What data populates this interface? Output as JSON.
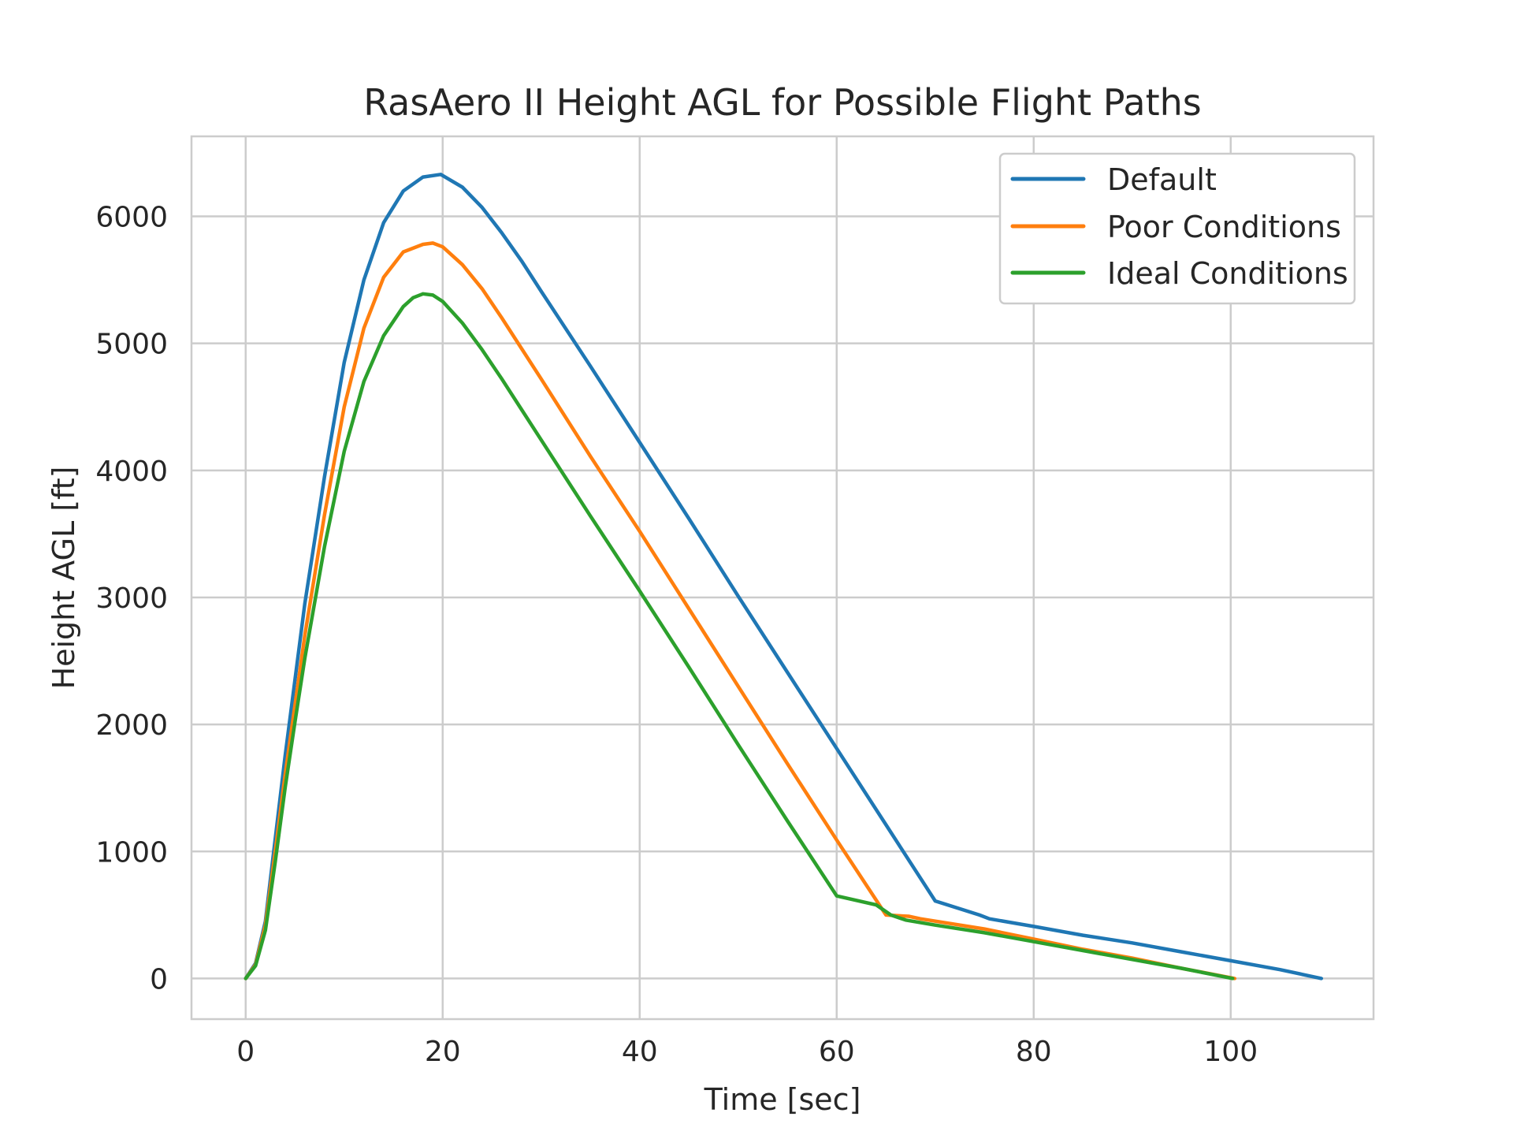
{
  "chart_data": {
    "type": "line",
    "title": "RasAero II Height AGL for Possible Flight Paths",
    "xlabel": "Time [sec]",
    "ylabel": "Height AGL [ft]",
    "xlim": [
      -5.5,
      114.5
    ],
    "ylim": [
      -320,
      6630
    ],
    "xticks": [
      0,
      20,
      40,
      60,
      80,
      100
    ],
    "yticks": [
      0,
      1000,
      2000,
      3000,
      4000,
      5000,
      6000
    ],
    "grid": true,
    "legend_position": "top-right",
    "series": [
      {
        "name": "Default",
        "color": "#1f77b4",
        "x": [
          0,
          1,
          2,
          3,
          4,
          5,
          6,
          8,
          10,
          12,
          14,
          16,
          18,
          19.8,
          22,
          24,
          26,
          28,
          30,
          35,
          40,
          45,
          50,
          55,
          60,
          65,
          70,
          74.5,
          75.5,
          80,
          85,
          90,
          95,
          100,
          105,
          109.2
        ],
        "y": [
          0,
          120,
          450,
          1100,
          1750,
          2350,
          2950,
          3950,
          4850,
          5500,
          5950,
          6200,
          6310,
          6330,
          6230,
          6070,
          5870,
          5650,
          5410,
          4820,
          4220,
          3620,
          3010,
          2410,
          1810,
          1210,
          610,
          500,
          470,
          410,
          340,
          280,
          210,
          140,
          70,
          0
        ]
      },
      {
        "name": "Poor Conditions",
        "color": "#ff7f0e",
        "x": [
          0,
          1,
          2,
          3,
          4,
          5,
          6,
          8,
          10,
          12,
          14,
          16,
          18,
          19,
          20,
          22,
          24,
          26,
          28,
          30,
          35,
          40,
          45,
          50,
          55,
          60,
          65,
          67.3,
          68.5,
          75,
          80,
          85,
          90,
          95,
          100.4
        ],
        "y": [
          0,
          110,
          420,
          1000,
          1600,
          2150,
          2700,
          3650,
          4500,
          5120,
          5520,
          5720,
          5780,
          5790,
          5760,
          5620,
          5430,
          5200,
          4960,
          4720,
          4110,
          3520,
          2910,
          2300,
          1690,
          1090,
          500,
          490,
          470,
          390,
          310,
          230,
          160,
          80,
          0
        ]
      },
      {
        "name": "Ideal Conditions",
        "color": "#2ca02c",
        "x": [
          0,
          1,
          2,
          3,
          4,
          5,
          6,
          8,
          10,
          12,
          14,
          16,
          17,
          18,
          19,
          20,
          22,
          24,
          26,
          28,
          30,
          35,
          40,
          45,
          50,
          55,
          60,
          64,
          65.5,
          67,
          70,
          75,
          80,
          85,
          90,
          95,
          100.2
        ],
        "y": [
          0,
          100,
          380,
          920,
          1500,
          2020,
          2520,
          3400,
          4150,
          4700,
          5060,
          5290,
          5360,
          5390,
          5380,
          5330,
          5160,
          4950,
          4720,
          4480,
          4240,
          3640,
          3050,
          2450,
          1840,
          1240,
          650,
          580,
          500,
          460,
          420,
          360,
          290,
          220,
          150,
          80,
          0
        ]
      }
    ]
  }
}
